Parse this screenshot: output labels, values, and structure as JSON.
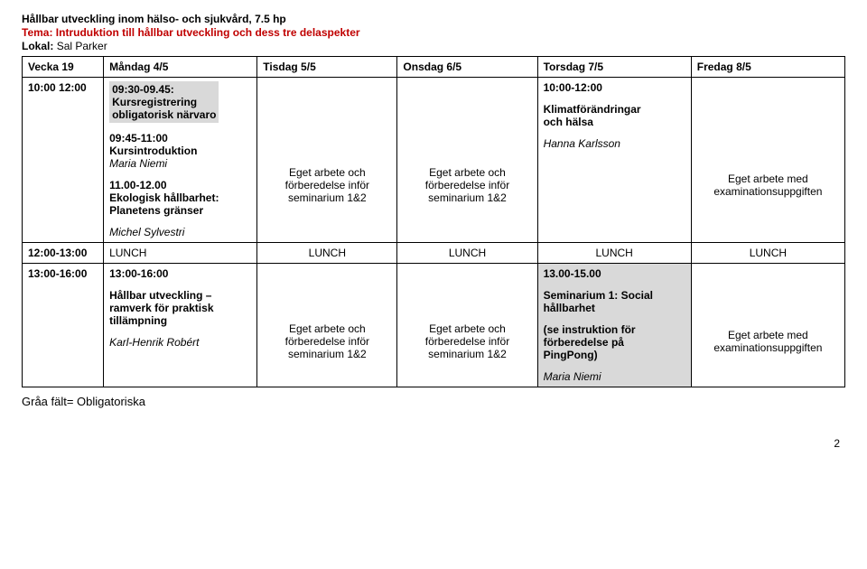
{
  "header": {
    "title": "Hållbar utveckling inom hälso- och sjukvård, 7.5 hp",
    "theme": "Tema: Intruduktion till hållbar utveckling och dess tre delaspekter",
    "location_label": "Lokal:",
    "location_value": "Sal Parker"
  },
  "week_row": {
    "week": "Vecka 19",
    "mon": "Måndag 4/5",
    "tue": "Tisdag 5/5",
    "wed": "Onsdag 6/5",
    "thu": "Torsdag 7/5",
    "fri": "Fredag 8/5"
  },
  "row1": {
    "time": "10:00 12:00",
    "mon": {
      "reg_time": "09:30-09.45:",
      "reg_line1": "Kursregistrering",
      "reg_line2": "obligatorisk närvaro",
      "intro_time": "09:45-11:00",
      "intro_title": "Kursintroduktion",
      "intro_presenter": "Maria Niemi",
      "eco_time": "11.00-12.00",
      "eco_title1": "Ekologisk hållbarhet:",
      "eco_title2": "Planetens gränser",
      "eco_presenter": "Michel Sylvestri"
    },
    "tue": "Eget arbete och förberedelse inför seminarium 1&2",
    "wed": "Eget arbete och förberedelse inför seminarium 1&2",
    "thu": {
      "time": "10:00-12:00",
      "line1": "Klimatförändringar",
      "line2": "och hälsa",
      "presenter": "Hanna Karlsson"
    },
    "fri": "Eget arbete med examinationsuppgiften"
  },
  "row2": {
    "time": "12:00-13:00",
    "mon": "LUNCH",
    "tue": "LUNCH",
    "wed": "LUNCH",
    "thu": "LUNCH",
    "fri": "LUNCH"
  },
  "row3": {
    "time": "13:00-16:00",
    "mon": {
      "time": "13:00-16:00",
      "line1": "Hållbar utveckling –",
      "line2": "ramverk för praktisk",
      "line3": "tillämpning",
      "presenter": "Karl-Henrik Robért"
    },
    "tue": "Eget arbete och förberedelse inför seminarium 1&2",
    "wed": "Eget arbete och förberedelse inför seminarium 1&2",
    "thu": {
      "time": "13.00-15.00",
      "sem1": "Seminarium 1: Social",
      "sem2": "hållbarhet",
      "note1": "(se instruktion för",
      "note2": "förberedelse på",
      "note3": "PingPong)",
      "presenter": "Maria Niemi"
    },
    "fri": "Eget arbete med examinationsuppgiften"
  },
  "footnote": "Gråa fält= Obligatoriska",
  "page_num": "2"
}
